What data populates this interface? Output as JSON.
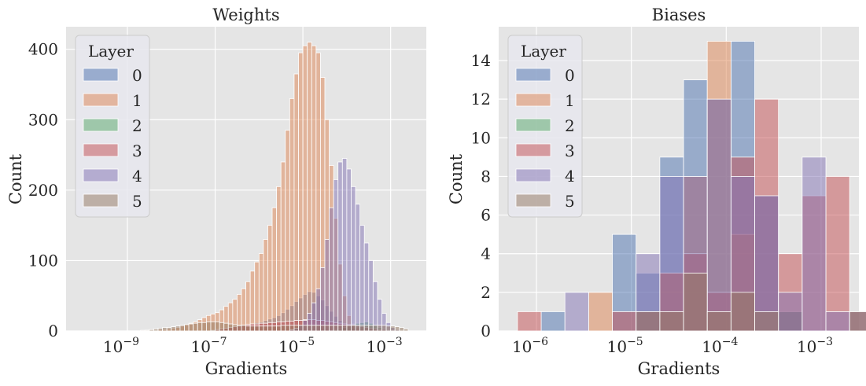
{
  "chart_data": [
    {
      "type": "bar",
      "title": "Weights",
      "xlabel": "Gradients",
      "ylabel": "Count",
      "xscale": "log",
      "xlim": [
        4e-11,
        0.0065
      ],
      "ylim": [
        0,
        432
      ],
      "yticks": [
        0,
        100,
        200,
        300,
        400
      ],
      "xticks": [
        {
          "value": 1e-09,
          "mantissa": "10",
          "exponent": "−9"
        },
        {
          "value": 1e-07,
          "mantissa": "10",
          "exponent": "−7"
        },
        {
          "value": 1e-05,
          "mantissa": "10",
          "exponent": "−5"
        },
        {
          "value": 0.001,
          "mantissa": "10",
          "exponent": "−3"
        }
      ],
      "grid": true,
      "legend": {
        "title": "Layer",
        "position": "top-left"
      },
      "bin_edges_log10": [
        -10.0,
        -9.9,
        -9.8,
        -9.7,
        -9.6,
        -9.5,
        -9.4,
        -9.3,
        -9.2,
        -9.1,
        -9.0,
        -8.9,
        -8.8,
        -8.7,
        -8.6,
        -8.5,
        -8.4,
        -8.3,
        -8.2,
        -8.1,
        -8.0,
        -7.9,
        -7.8,
        -7.7,
        -7.6,
        -7.5,
        -7.4,
        -7.3,
        -7.2,
        -7.1,
        -7.0,
        -6.9,
        -6.8,
        -6.7,
        -6.6,
        -6.5,
        -6.4,
        -6.3,
        -6.2,
        -6.1,
        -6.0,
        -5.9,
        -5.8,
        -5.7,
        -5.6,
        -5.5,
        -5.4,
        -5.3,
        -5.2,
        -5.1,
        -5.0,
        -4.9,
        -4.8,
        -4.7,
        -4.6,
        -4.5,
        -4.4,
        -4.3,
        -4.2,
        -4.1,
        -4.0,
        -3.9,
        -3.8,
        -3.7,
        -3.6,
        -3.5,
        -3.4,
        -3.3,
        -3.2,
        -3.1,
        -3.0,
        -2.9,
        -2.8,
        -2.7,
        -2.6,
        -2.5
      ],
      "series": [
        {
          "name": "0",
          "color": "#4c72b0",
          "values": [
            0,
            0,
            0,
            0,
            0,
            0,
            0,
            0,
            0,
            0,
            0,
            0,
            0,
            0,
            0,
            0,
            0,
            0,
            0,
            0,
            0,
            0,
            0,
            0,
            0,
            0,
            0,
            0,
            0,
            0,
            2,
            3,
            4,
            5,
            7,
            8,
            9,
            10,
            11,
            12,
            13,
            15,
            17,
            19,
            22,
            26,
            31,
            36,
            42,
            47,
            52,
            56,
            55,
            50,
            44,
            36,
            28,
            21,
            15,
            10,
            6,
            4,
            2,
            1,
            0,
            0,
            0,
            0,
            0,
            0,
            0,
            0,
            0,
            0,
            0
          ]
        },
        {
          "name": "1",
          "color": "#dd8452",
          "values": [
            0,
            0,
            0,
            0,
            0,
            0,
            0,
            0,
            0,
            0,
            0,
            0,
            0,
            0,
            1,
            1,
            1,
            2,
            2,
            3,
            4,
            5,
            7,
            9,
            11,
            13,
            16,
            19,
            22,
            24,
            26,
            30,
            35,
            40,
            45,
            52,
            60,
            70,
            85,
            98,
            110,
            130,
            150,
            175,
            205,
            240,
            285,
            330,
            365,
            395,
            405,
            410,
            405,
            395,
            360,
            300,
            235,
            160,
            95,
            50,
            22,
            10,
            5,
            2,
            1,
            0,
            0,
            0,
            0,
            0,
            0,
            0,
            0,
            0,
            0
          ]
        },
        {
          "name": "2",
          "color": "#55a868",
          "values": [
            0,
            0,
            0,
            0,
            0,
            0,
            0,
            0,
            0,
            0,
            0,
            0,
            0,
            0,
            0,
            0,
            0,
            0,
            0,
            0,
            0,
            0,
            0,
            0,
            0,
            0,
            0,
            0,
            0,
            0,
            0,
            0,
            0,
            0,
            0,
            0,
            0,
            0,
            0,
            0,
            0,
            0,
            0,
            0,
            0,
            0,
            0,
            0,
            0,
            0,
            0,
            0,
            0,
            0,
            0,
            0,
            1,
            2,
            3,
            5,
            7,
            9,
            11,
            12,
            13,
            11,
            8,
            5,
            3,
            2,
            1,
            0,
            0,
            0,
            0
          ]
        },
        {
          "name": "3",
          "color": "#c44e52",
          "values": [
            0,
            0,
            0,
            0,
            0,
            0,
            0,
            0,
            0,
            0,
            0,
            0,
            0,
            0,
            0,
            0,
            0,
            0,
            0,
            0,
            0,
            0,
            0,
            0,
            0,
            0,
            0,
            0,
            0,
            1,
            2,
            3,
            4,
            5,
            6,
            7,
            8,
            9,
            10,
            10,
            11,
            11,
            12,
            12,
            13,
            13,
            14,
            14,
            15,
            15,
            16,
            16,
            16,
            15,
            15,
            14,
            13,
            12,
            11,
            10,
            9,
            8,
            7,
            6,
            5,
            4,
            3,
            2,
            2,
            1,
            1,
            0,
            0,
            0,
            0
          ]
        },
        {
          "name": "4",
          "color": "#8172b3",
          "values": [
            0,
            0,
            0,
            0,
            0,
            0,
            0,
            0,
            0,
            0,
            0,
            0,
            0,
            0,
            0,
            0,
            0,
            0,
            0,
            0,
            0,
            0,
            0,
            0,
            0,
            0,
            0,
            0,
            0,
            0,
            0,
            0,
            0,
            0,
            0,
            0,
            0,
            0,
            0,
            0,
            0,
            0,
            0,
            0,
            0,
            0,
            0,
            2,
            4,
            8,
            15,
            25,
            40,
            60,
            90,
            130,
            175,
            215,
            240,
            245,
            230,
            205,
            180,
            150,
            125,
            100,
            70,
            45,
            25,
            12,
            5,
            2,
            0,
            0,
            0
          ]
        },
        {
          "name": "5",
          "color": "#937860",
          "values": [
            0,
            0,
            0,
            0,
            0,
            0,
            0,
            0,
            0,
            0,
            0,
            0,
            0,
            1,
            1,
            2,
            3,
            4,
            5,
            5,
            6,
            7,
            8,
            9,
            10,
            11,
            12,
            12,
            13,
            13,
            13,
            12,
            11,
            10,
            9,
            8,
            8,
            7,
            7,
            7,
            7,
            7,
            7,
            7,
            7,
            8,
            8,
            8,
            8,
            8,
            8,
            8,
            8,
            8,
            8,
            8,
            8,
            8,
            8,
            8,
            8,
            8,
            8,
            8,
            8,
            8,
            8,
            8,
            8,
            7,
            7,
            6,
            5,
            3,
            0
          ]
        }
      ]
    },
    {
      "type": "bar",
      "title": "Biases",
      "xlabel": "Gradients",
      "ylabel": "Count",
      "xscale": "log",
      "xlim": [
        4e-07,
        0.0025
      ],
      "ylim": [
        0,
        15.75
      ],
      "yticks": [
        0,
        2,
        4,
        6,
        8,
        10,
        12,
        14
      ],
      "xticks": [
        {
          "value": 1e-06,
          "mantissa": "10",
          "exponent": "−6"
        },
        {
          "value": 1e-05,
          "mantissa": "10",
          "exponent": "−5"
        },
        {
          "value": 0.0001,
          "mantissa": "10",
          "exponent": "−4"
        },
        {
          "value": 0.001,
          "mantissa": "10",
          "exponent": "−3"
        }
      ],
      "grid": true,
      "legend": {
        "title": "Layer",
        "position": "top-left"
      },
      "bin_edges_log10": [
        -6.2,
        -5.95,
        -5.7,
        -5.45,
        -5.2,
        -4.95,
        -4.7,
        -4.45,
        -4.2,
        -3.95,
        -3.7,
        -3.45,
        -3.2,
        -2.95,
        -2.7,
        -2.45
      ],
      "series": [
        {
          "name": "0",
          "color": "#4c72b0",
          "values": [
            0,
            1,
            0,
            0,
            5,
            3,
            9,
            13,
            12,
            15,
            7,
            1,
            0,
            0,
            0
          ]
        },
        {
          "name": "1",
          "color": "#dd8452",
          "values": [
            0,
            0,
            0,
            2,
            0,
            0,
            3,
            8,
            15,
            5,
            0,
            0,
            0,
            0,
            0
          ]
        },
        {
          "name": "2",
          "color": "#55a868",
          "values": [
            0,
            0,
            0,
            0,
            0,
            0,
            0,
            0,
            0,
            0,
            0,
            1,
            0,
            0,
            0
          ]
        },
        {
          "name": "3",
          "color": "#c44e52",
          "values": [
            1,
            0,
            0,
            0,
            1,
            1,
            3,
            4,
            2,
            9,
            12,
            4,
            7,
            8,
            1
          ]
        },
        {
          "name": "4",
          "color": "#8172b3",
          "values": [
            0,
            0,
            2,
            0,
            0,
            4,
            8,
            8,
            12,
            8,
            7,
            2,
            9,
            1,
            1
          ]
        },
        {
          "name": "5",
          "color": "#937860",
          "values": [
            0,
            0,
            0,
            0,
            0,
            1,
            1,
            3,
            1,
            2,
            1,
            0,
            0,
            0,
            1
          ]
        }
      ]
    }
  ]
}
